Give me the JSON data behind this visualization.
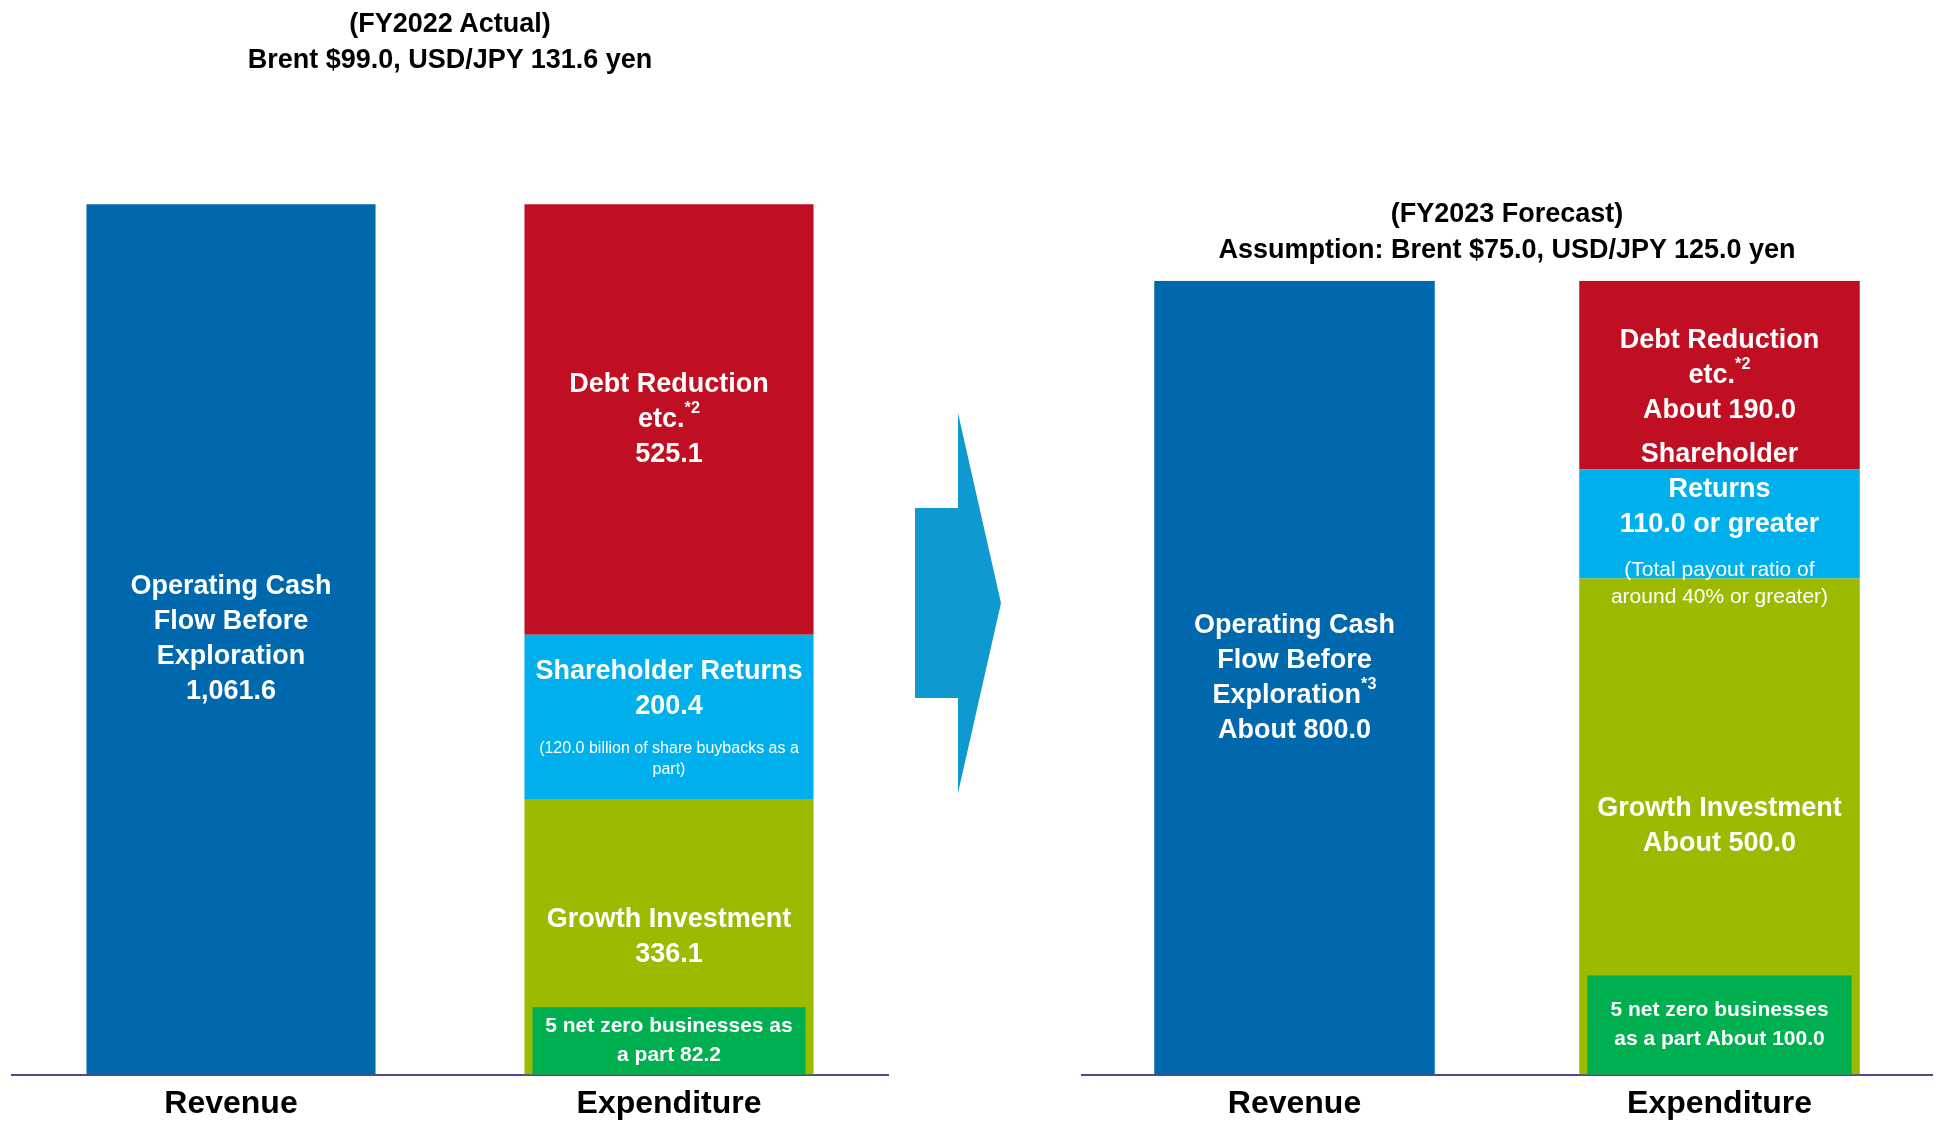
{
  "chart_data": [
    {
      "type": "bar",
      "title": "(FY2022 Actual)",
      "subtitle": "Brent $99.0, USD/JPY 131.6 yen",
      "categories": [
        "Revenue",
        "Expenditure"
      ],
      "stacked": true,
      "grid": false,
      "legend": false,
      "tick_labels": "x",
      "series": [
        {
          "name": "Operating Cash Flow Before Exploration",
          "color": "#0068ad",
          "values": [
            1061.6,
            null
          ],
          "value_labels": [
            "1,061.6",
            null
          ]
        },
        {
          "name": "Growth Investment",
          "color": "#9cbb00",
          "values": [
            null,
            336.1
          ],
          "value_labels": [
            null,
            "336.1"
          ]
        },
        {
          "name": "Shareholder Returns",
          "color": "#00b0ec",
          "values": [
            null,
            200.4
          ],
          "value_labels": [
            null,
            "200.4"
          ]
        },
        {
          "name": "Debt Reduction etc.$^{*2}$",
          "color": "#c00f23",
          "values": [
            null,
            525.1
          ],
          "value_labels": [
            null,
            "525.1"
          ]
        }
      ],
      "bands": [
        {
          "axis": "y",
          "from": 0,
          "to": 82.2,
          "label": "5 net zero businesses as a part 82.2",
          "color": "#00b050"
        }
      ],
      "annotations": [
        "(120.0 billion of share buybacks as a part)"
      ]
    },
    {
      "type": "bar",
      "title": "(FY2023 Forecast)",
      "subtitle": "Assumption: Brent $75.0, USD/JPY 125.0 yen",
      "categories": [
        "Revenue",
        "Expenditure"
      ],
      "stacked": true,
      "grid": false,
      "legend": false,
      "tick_labels": "x",
      "series": [
        {
          "name": "Operating Cash Flow Before Exploration$^{*3}$",
          "color": "#0068ad",
          "values": [
            800.0,
            null
          ],
          "value_labels": [
            "About 800.0",
            null
          ]
        },
        {
          "name": "Growth Investment",
          "color": "#9cbb00",
          "values": [
            null,
            500.0
          ],
          "value_labels": [
            null,
            "About 500.0"
          ]
        },
        {
          "name": "Shareholder Returns",
          "color": "#00b0ec",
          "values": [
            null,
            110.0
          ],
          "value_labels": [
            null,
            "110.0 or greater"
          ]
        },
        {
          "name": "Debt Reduction etc.$^{*2}$",
          "color": "#c00f23",
          "values": [
            null,
            190.0
          ],
          "value_labels": [
            null,
            "About 190.0"
          ]
        }
      ],
      "bands": [
        {
          "axis": "y",
          "from": 0,
          "to": 100.0,
          "label": "5 net zero businesses as a part About 100.0",
          "color": "#00b050"
        }
      ],
      "annotations": [
        "(Total payout ratio of around 40% or greater)"
      ]
    }
  ]
}
